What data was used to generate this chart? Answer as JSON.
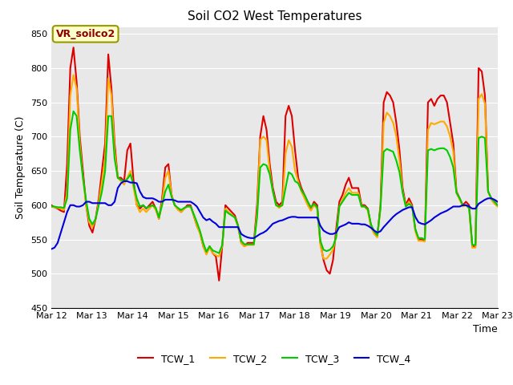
{
  "title": "Soil CO2 West Temperatures",
  "xlabel": "Time",
  "ylabel": "Soil Temperature (C)",
  "ylim": [
    450,
    860
  ],
  "yticks": [
    450,
    500,
    550,
    600,
    650,
    700,
    750,
    800,
    850
  ],
  "annotation": "VR_soilco2",
  "bg_color": "#e8e8e8",
  "line_colors": {
    "TCW_1": "#dd0000",
    "TCW_2": "#ffaa00",
    "TCW_3": "#00cc00",
    "TCW_4": "#0000dd"
  },
  "xtick_labels": [
    "Mar 12",
    "Mar 13",
    "Mar 14",
    "Mar 15",
    "Mar 16",
    "Mar 17",
    "Mar 18",
    "Mar 19",
    "Mar 20",
    "Mar 21",
    "Mar 22",
    "Mar 23"
  ],
  "TCW_1": [
    600,
    597,
    595,
    592,
    590,
    660,
    800,
    830,
    780,
    700,
    650,
    600,
    570,
    560,
    580,
    610,
    650,
    690,
    820,
    770,
    690,
    640,
    640,
    635,
    680,
    690,
    635,
    600,
    595,
    600,
    595,
    600,
    605,
    595,
    580,
    610,
    655,
    660,
    615,
    600,
    595,
    590,
    595,
    600,
    600,
    585,
    570,
    560,
    540,
    530,
    540,
    530,
    525,
    490,
    540,
    600,
    595,
    590,
    585,
    570,
    545,
    540,
    545,
    545,
    545,
    600,
    700,
    730,
    710,
    660,
    625,
    605,
    600,
    605,
    730,
    745,
    730,
    680,
    640,
    625,
    615,
    605,
    595,
    605,
    600,
    545,
    520,
    505,
    500,
    520,
    565,
    605,
    615,
    630,
    640,
    625,
    625,
    625,
    600,
    600,
    595,
    570,
    560,
    555,
    600,
    750,
    765,
    760,
    750,
    720,
    680,
    625,
    600,
    610,
    600,
    565,
    550,
    550,
    548,
    750,
    755,
    745,
    755,
    760,
    760,
    750,
    720,
    690,
    620,
    610,
    600,
    605,
    600,
    540,
    540,
    800,
    795,
    760,
    620,
    610,
    605,
    600
  ],
  "TCW_2": [
    598,
    597,
    596,
    595,
    593,
    620,
    760,
    790,
    770,
    690,
    640,
    600,
    575,
    568,
    580,
    605,
    635,
    670,
    785,
    760,
    680,
    640,
    635,
    630,
    640,
    650,
    625,
    600,
    590,
    595,
    590,
    595,
    600,
    593,
    580,
    605,
    640,
    650,
    615,
    600,
    593,
    590,
    595,
    598,
    598,
    585,
    570,
    558,
    540,
    528,
    538,
    530,
    527,
    525,
    540,
    595,
    590,
    586,
    582,
    568,
    545,
    540,
    542,
    542,
    542,
    590,
    695,
    700,
    695,
    650,
    620,
    600,
    596,
    600,
    675,
    695,
    685,
    650,
    635,
    620,
    610,
    600,
    592,
    600,
    595,
    542,
    522,
    522,
    528,
    535,
    555,
    598,
    608,
    618,
    625,
    618,
    618,
    618,
    598,
    598,
    592,
    568,
    558,
    553,
    595,
    720,
    735,
    730,
    720,
    700,
    665,
    620,
    598,
    605,
    598,
    562,
    548,
    548,
    547,
    710,
    720,
    718,
    720,
    722,
    722,
    715,
    700,
    678,
    618,
    608,
    598,
    600,
    595,
    538,
    538,
    755,
    762,
    748,
    620,
    608,
    602,
    598
  ],
  "TCW_3": [
    598,
    598,
    597,
    597,
    596,
    610,
    710,
    737,
    730,
    680,
    640,
    607,
    580,
    572,
    580,
    600,
    620,
    650,
    730,
    730,
    668,
    640,
    637,
    635,
    638,
    645,
    630,
    610,
    598,
    600,
    596,
    598,
    600,
    596,
    582,
    600,
    620,
    630,
    612,
    600,
    596,
    593,
    596,
    598,
    598,
    587,
    575,
    562,
    545,
    532,
    540,
    534,
    532,
    530,
    542,
    592,
    588,
    585,
    582,
    570,
    548,
    543,
    543,
    543,
    543,
    582,
    655,
    660,
    658,
    645,
    620,
    600,
    598,
    600,
    625,
    648,
    645,
    635,
    632,
    622,
    615,
    605,
    597,
    602,
    597,
    548,
    535,
    533,
    535,
    540,
    553,
    598,
    605,
    612,
    618,
    615,
    615,
    615,
    598,
    598,
    594,
    572,
    562,
    556,
    596,
    678,
    682,
    680,
    678,
    665,
    648,
    618,
    598,
    602,
    598,
    565,
    552,
    552,
    550,
    680,
    682,
    680,
    682,
    683,
    683,
    680,
    670,
    655,
    618,
    610,
    600,
    600,
    596,
    542,
    542,
    698,
    700,
    698,
    620,
    610,
    605,
    600
  ],
  "TCW_4": [
    536,
    538,
    545,
    560,
    575,
    590,
    600,
    600,
    598,
    598,
    600,
    605,
    605,
    603,
    603,
    603,
    603,
    603,
    600,
    600,
    605,
    625,
    632,
    635,
    635,
    633,
    633,
    632,
    620,
    612,
    610,
    610,
    610,
    608,
    605,
    605,
    608,
    608,
    608,
    607,
    605,
    605,
    605,
    605,
    605,
    602,
    598,
    590,
    582,
    578,
    580,
    576,
    573,
    568,
    568,
    568,
    568,
    568,
    568,
    568,
    558,
    555,
    553,
    552,
    552,
    555,
    558,
    560,
    563,
    568,
    573,
    575,
    577,
    578,
    580,
    582,
    583,
    583,
    582,
    582,
    582,
    582,
    582,
    582,
    582,
    570,
    563,
    560,
    558,
    558,
    560,
    568,
    570,
    572,
    575,
    573,
    573,
    573,
    572,
    572,
    570,
    567,
    563,
    560,
    562,
    568,
    573,
    578,
    583,
    587,
    590,
    593,
    595,
    597,
    597,
    583,
    575,
    573,
    572,
    575,
    578,
    582,
    585,
    588,
    590,
    592,
    595,
    598,
    598,
    598,
    600,
    600,
    598,
    595,
    595,
    602,
    605,
    608,
    610,
    610,
    608,
    605
  ]
}
